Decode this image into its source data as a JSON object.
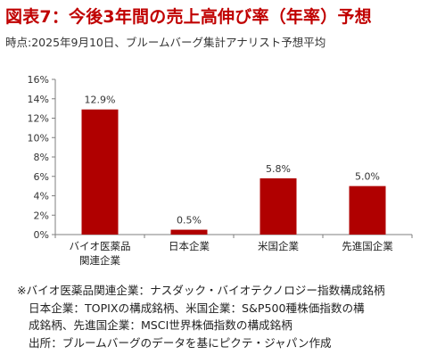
{
  "header": {
    "title": "図表7：今後3年間の売上高伸び率（年率）予想",
    "subtitle": "時点:2025年9月10日、ブルームバーグ集計アナリスト予想平均"
  },
  "chart_data": {
    "type": "bar",
    "categories": [
      [
        "バイオ医薬品",
        "関連企業"
      ],
      [
        "日本企業"
      ],
      [
        "米国企業"
      ],
      [
        "先進国企業"
      ]
    ],
    "values": [
      12.9,
      0.5,
      5.8,
      5.0
    ],
    "data_labels": [
      "12.9%",
      "0.5%",
      "5.8%",
      "5.0%"
    ],
    "yticks": [
      0,
      2,
      4,
      6,
      8,
      10,
      12,
      14,
      16
    ],
    "ytick_labels": [
      "0%",
      "2%",
      "4%",
      "6%",
      "8%",
      "10%",
      "12%",
      "14%",
      "16%"
    ],
    "ylim": [
      0,
      16
    ],
    "grid": false,
    "legend": "none",
    "bar_color": "#b00000"
  },
  "notes": {
    "line1": "※バイオ医薬品関連企業：ナスダック・バイオテクノロジー指数構成銘柄",
    "line2": "日本企業：TOPIXの構成銘柄、米国企業：S&P500種株価指数の構",
    "line3": "成銘柄、先進国企業：MSCI世界株価指数の構成銘柄",
    "line4": "出所：ブルームバーグのデータを基にピクテ・ジャパン作成"
  }
}
